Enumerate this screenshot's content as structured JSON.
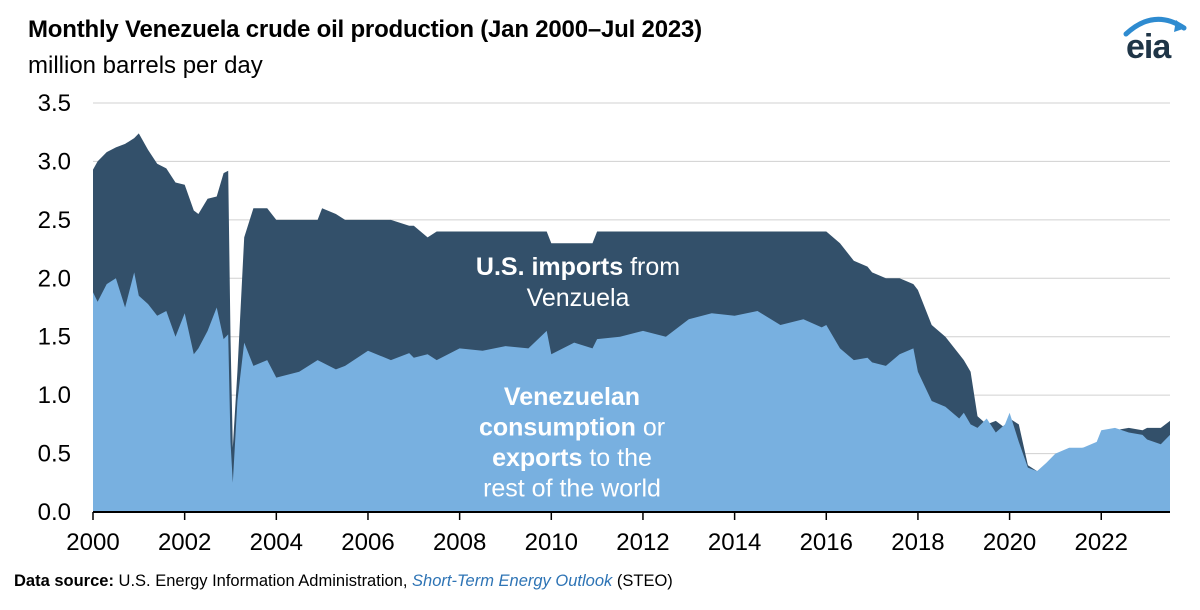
{
  "header": {
    "title": "Monthly Venezuela crude oil production (Jan 2000–Jul 2023)",
    "subtitle": "million barrels per day",
    "logo": "eia"
  },
  "footer": {
    "label": "Data source:",
    "source": "U.S. Energy Information Administration,",
    "publication": "Short-Term Energy Outlook",
    "suffix": "(STEO)"
  },
  "chart_data": {
    "type": "area",
    "title": "Monthly Venezuela crude oil production (Jan 2000–Jul 2023)",
    "ylabel": "million barrels per day",
    "xlim": [
      2000.0,
      2023.5
    ],
    "ylim": [
      0,
      3.5
    ],
    "yticks": [
      "0.0",
      "0.5",
      "1.0",
      "1.5",
      "2.0",
      "2.5",
      "3.0",
      "3.5"
    ],
    "xticks": [
      "2000",
      "2002",
      "2004",
      "2006",
      "2008",
      "2010",
      "2012",
      "2014",
      "2016",
      "2018",
      "2020",
      "2022"
    ],
    "grid": true,
    "colors": {
      "us_imports": "#33506a",
      "consumption_exports": "#78b0e0",
      "grid": "#d0d0d0"
    },
    "series": [
      {
        "name": "U.S. imports from Venzuela",
        "note": "stacked top = total production",
        "x": [
          2000.0,
          2000.1,
          2000.3,
          2000.5,
          2000.7,
          2000.9,
          2001.0,
          2001.2,
          2001.4,
          2001.6,
          2001.8,
          2002.0,
          2002.2,
          2002.3,
          2002.5,
          2002.7,
          2002.85,
          2002.95,
          2003.0,
          2003.05,
          2003.15,
          2003.3,
          2003.5,
          2003.8,
          2004.0,
          2004.5,
          2004.9,
          2005.0,
          2005.3,
          2005.5,
          2006.0,
          2006.5,
          2006.9,
          2007.0,
          2007.3,
          2007.5,
          2008.0,
          2008.5,
          2009.0,
          2009.5,
          2009.9,
          2010.0,
          2010.5,
          2010.9,
          2011.0,
          2011.5,
          2012.0,
          2012.5,
          2013.0,
          2013.5,
          2014.0,
          2014.5,
          2015.0,
          2015.5,
          2015.9,
          2016.0,
          2016.3,
          2016.6,
          2016.9,
          2017.0,
          2017.3,
          2017.6,
          2017.9,
          2018.0,
          2018.3,
          2018.6,
          2018.9,
          2019.0,
          2019.15,
          2019.3,
          2019.5,
          2019.7,
          2019.9,
          2020.0,
          2020.2,
          2020.4,
          2020.6,
          2020.8,
          2021.0,
          2021.3,
          2021.6,
          2021.9,
          2022.0,
          2022.3,
          2022.6,
          2022.9,
          2023.0,
          2023.3,
          2023.5
        ],
        "values": [
          2.93,
          3.0,
          3.08,
          3.12,
          3.15,
          3.2,
          3.24,
          3.1,
          2.98,
          2.94,
          2.82,
          2.8,
          2.58,
          2.55,
          2.68,
          2.7,
          2.9,
          2.92,
          1.5,
          0.55,
          1.2,
          2.35,
          2.6,
          2.6,
          2.5,
          2.5,
          2.5,
          2.6,
          2.55,
          2.5,
          2.5,
          2.5,
          2.45,
          2.45,
          2.35,
          2.4,
          2.4,
          2.4,
          2.4,
          2.4,
          2.4,
          2.3,
          2.3,
          2.3,
          2.4,
          2.4,
          2.4,
          2.4,
          2.4,
          2.4,
          2.4,
          2.4,
          2.4,
          2.4,
          2.4,
          2.4,
          2.3,
          2.15,
          2.1,
          2.05,
          2.0,
          2.0,
          1.95,
          1.9,
          1.6,
          1.5,
          1.35,
          1.3,
          1.2,
          0.82,
          0.75,
          0.78,
          0.72,
          0.8,
          0.75,
          0.4,
          0.35,
          0.38,
          0.42,
          0.5,
          0.55,
          0.55,
          0.6,
          0.7,
          0.72,
          0.7,
          0.72,
          0.72,
          0.78
        ]
      },
      {
        "name": "Venezuelan consumption or exports to the rest of the world",
        "x": [
          2000.0,
          2000.1,
          2000.3,
          2000.5,
          2000.7,
          2000.9,
          2001.0,
          2001.2,
          2001.4,
          2001.6,
          2001.8,
          2002.0,
          2002.2,
          2002.3,
          2002.5,
          2002.7,
          2002.85,
          2002.95,
          2003.0,
          2003.05,
          2003.15,
          2003.3,
          2003.5,
          2003.8,
          2004.0,
          2004.5,
          2004.9,
          2005.0,
          2005.3,
          2005.5,
          2006.0,
          2006.5,
          2006.9,
          2007.0,
          2007.3,
          2007.5,
          2008.0,
          2008.5,
          2009.0,
          2009.5,
          2009.9,
          2010.0,
          2010.5,
          2010.9,
          2011.0,
          2011.5,
          2012.0,
          2012.5,
          2013.0,
          2013.5,
          2014.0,
          2014.5,
          2015.0,
          2015.5,
          2015.9,
          2016.0,
          2016.3,
          2016.6,
          2016.9,
          2017.0,
          2017.3,
          2017.6,
          2017.9,
          2018.0,
          2018.3,
          2018.6,
          2018.9,
          2019.0,
          2019.15,
          2019.3,
          2019.5,
          2019.7,
          2019.9,
          2020.0,
          2020.2,
          2020.4,
          2020.6,
          2020.8,
          2021.0,
          2021.3,
          2021.6,
          2021.9,
          2022.0,
          2022.3,
          2022.6,
          2022.9,
          2023.0,
          2023.3,
          2023.5
        ],
        "values": [
          1.88,
          1.8,
          1.95,
          2.0,
          1.75,
          2.05,
          1.85,
          1.78,
          1.68,
          1.72,
          1.5,
          1.7,
          1.35,
          1.4,
          1.55,
          1.75,
          1.48,
          1.52,
          0.6,
          0.25,
          0.95,
          1.45,
          1.25,
          1.3,
          1.15,
          1.2,
          1.3,
          1.28,
          1.22,
          1.25,
          1.38,
          1.3,
          1.36,
          1.32,
          1.35,
          1.3,
          1.4,
          1.38,
          1.42,
          1.4,
          1.55,
          1.35,
          1.45,
          1.4,
          1.48,
          1.5,
          1.55,
          1.5,
          1.65,
          1.7,
          1.68,
          1.72,
          1.6,
          1.65,
          1.58,
          1.6,
          1.4,
          1.3,
          1.32,
          1.28,
          1.25,
          1.35,
          1.4,
          1.2,
          0.95,
          0.9,
          0.8,
          0.85,
          0.75,
          0.72,
          0.8,
          0.68,
          0.75,
          0.85,
          0.6,
          0.38,
          0.35,
          0.42,
          0.5,
          0.55,
          0.55,
          0.6,
          0.7,
          0.72,
          0.68,
          0.66,
          0.62,
          0.58,
          0.66
        ]
      }
    ],
    "annotations": [
      {
        "lines": [
          [
            {
              "t": "U.S. imports",
              "b": true
            },
            {
              "t": " from",
              "b": false
            }
          ],
          [
            {
              "t": "Venzuela",
              "b": false
            }
          ]
        ]
      },
      {
        "lines": [
          [
            {
              "t": "Venezuelan",
              "b": true
            }
          ],
          [
            {
              "t": "consumption",
              "b": true
            },
            {
              "t": " or",
              "b": false
            }
          ],
          [
            {
              "t": "exports",
              "b": true
            },
            {
              "t": " to the",
              "b": false
            }
          ],
          [
            {
              "t": "rest of the world",
              "b": false
            }
          ]
        ]
      }
    ]
  }
}
